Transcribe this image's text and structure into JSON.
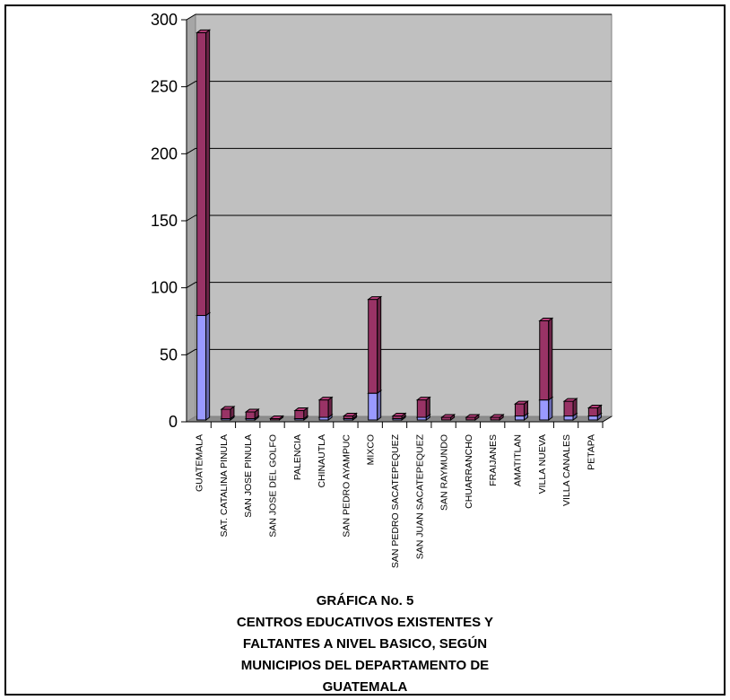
{
  "chart_data": {
    "type": "bar",
    "stacked": true,
    "three_d": true,
    "categories": [
      "GUATEMALA",
      "SAT. CATALINA PINULA",
      "SAN JOSE PINULA",
      "SAN JOSE DEL GOLFO",
      "PALENCIA",
      "CHINAUTLA",
      "SAN PEDRO AYAMPUC",
      "MIXCO",
      "SAN PEDRO SACATEPEQUEZ",
      "SAN JUAN SACATEPEQUEZ",
      "SAN RAYMUNDO",
      "CHUARRANCHO",
      "FRAIJANES",
      "AMATITLAN",
      "VILLA NUEVA",
      "VILLA CANALES",
      "PETAPA"
    ],
    "series": [
      {
        "values": [
          78,
          1,
          1,
          0,
          1,
          2,
          1,
          20,
          1,
          2,
          0,
          0,
          0,
          3,
          15,
          3,
          3
        ],
        "color": "#9999ff"
      },
      {
        "values": [
          211,
          7,
          5,
          1,
          6,
          13,
          2,
          70,
          2,
          13,
          2,
          2,
          2,
          9,
          59,
          11,
          6
        ],
        "color": "#993366"
      }
    ],
    "ylim": [
      0,
      300
    ],
    "yticks": [
      "0",
      "50",
      "100",
      "150",
      "200",
      "250",
      "300"
    ],
    "grid": true,
    "plot_background": "#c0c0c0"
  },
  "caption": {
    "line1": "GRÁFICA No. 5",
    "line2": "CENTROS EDUCATIVOS EXISTENTES Y",
    "line3": "FALTANTES A NIVEL BASICO, SEGÚN",
    "line4": "MUNICIPIOS DEL DEPARTAMENTO DE",
    "line5": "GUATEMALA"
  }
}
